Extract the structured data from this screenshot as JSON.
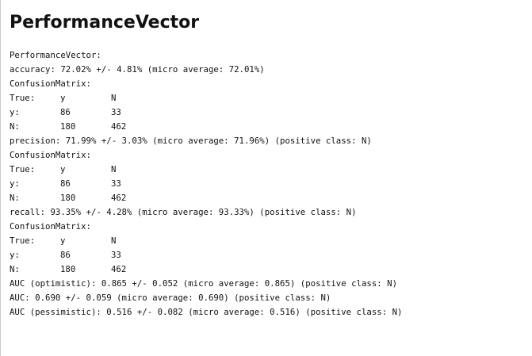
{
  "title": "PerformanceVector",
  "header": "PerformanceVector:",
  "accuracy": {
    "line": "accuracy: 72.02% +/- 4.81% (micro average: 72.01%)",
    "cm_label": "ConfusionMatrix:",
    "rows": [
      [
        "True:",
        "y",
        "N"
      ],
      [
        "y:",
        "86",
        "33"
      ],
      [
        "N:",
        "180",
        "462"
      ]
    ]
  },
  "precision": {
    "line": "precision: 71.99% +/- 3.03% (micro average: 71.96%) (positive class: N)",
    "cm_label": "ConfusionMatrix:",
    "rows": [
      [
        "True:",
        "y",
        "N"
      ],
      [
        "y:",
        "86",
        "33"
      ],
      [
        "N:",
        "180",
        "462"
      ]
    ]
  },
  "recall": {
    "line": "recall: 93.35% +/- 4.28% (micro average: 93.33%) (positive class: N)",
    "cm_label": "ConfusionMatrix:",
    "rows": [
      [
        "True:",
        "y",
        "N"
      ],
      [
        "y:",
        "86",
        "33"
      ],
      [
        "N:",
        "180",
        "462"
      ]
    ]
  },
  "auc_optimistic": "AUC (optimistic): 0.865 +/- 0.052 (micro average: 0.865) (positive class: N)",
  "auc": "AUC: 0.690 +/- 0.059 (micro average: 0.690) (positive class: N)",
  "auc_pessimistic": "AUC (pessimistic): 0.516 +/- 0.082 (micro average: 0.516) (positive class: N)"
}
